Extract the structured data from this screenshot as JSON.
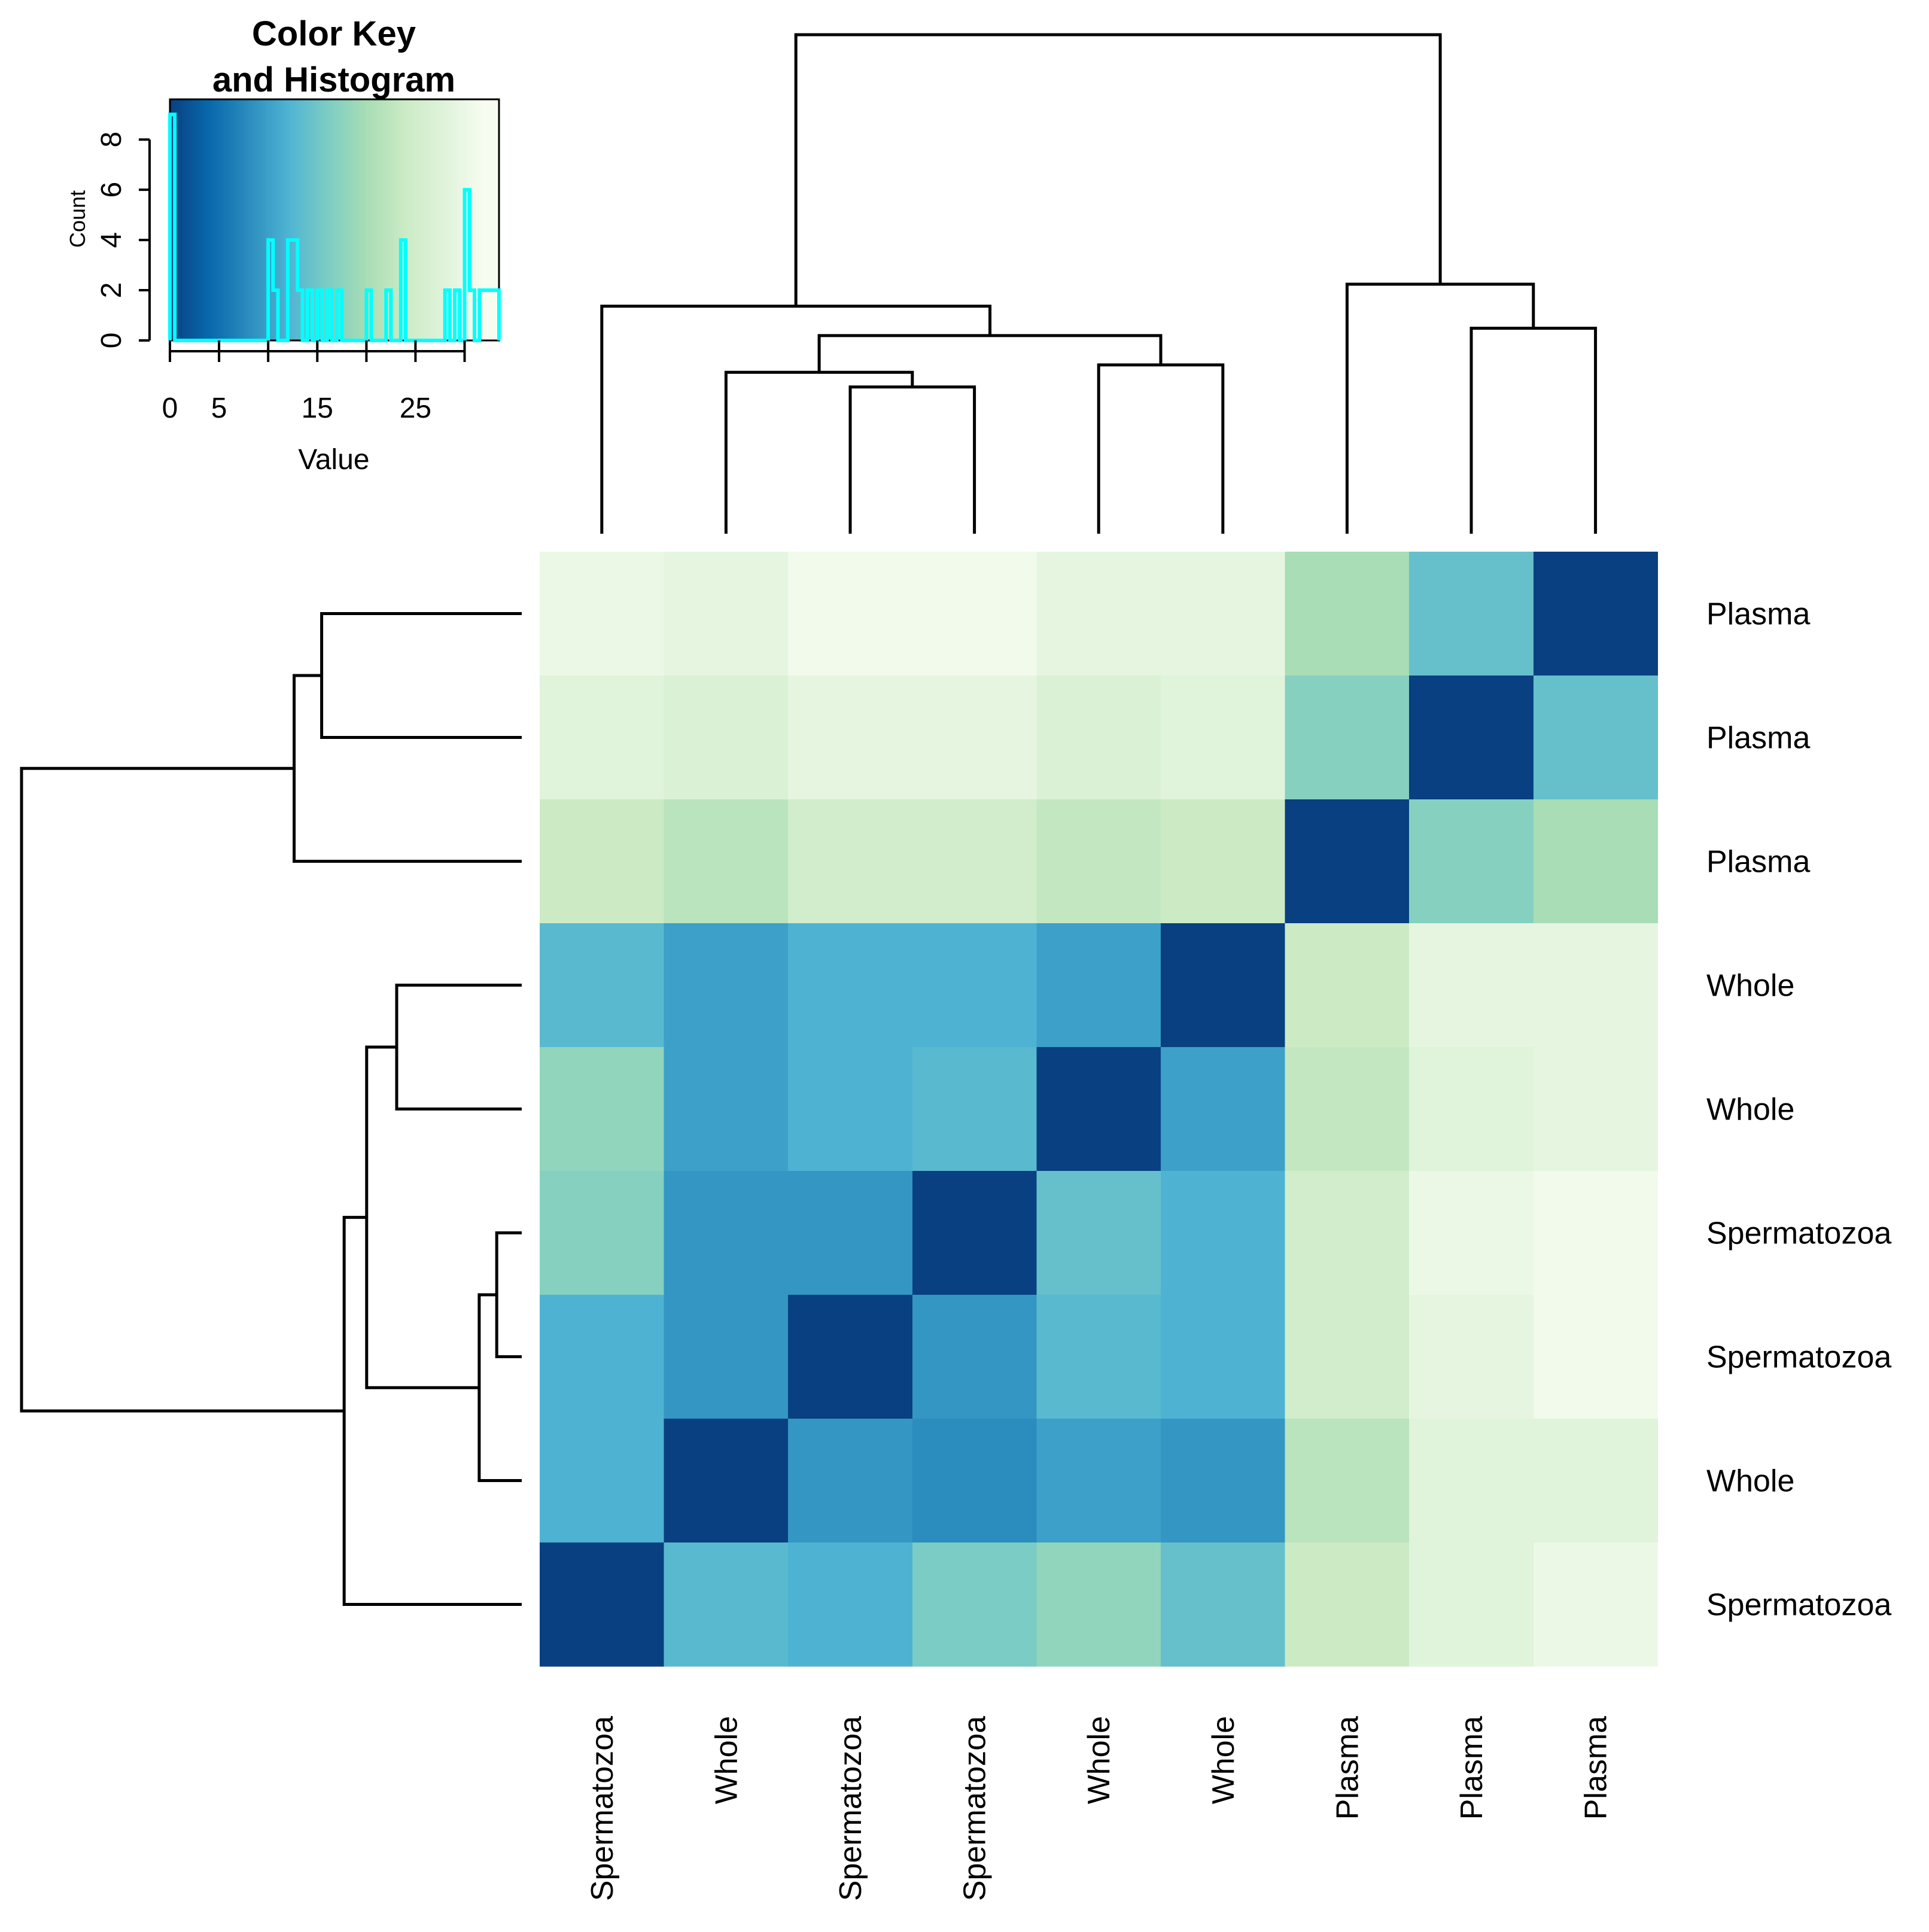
{
  "chart_data": {
    "type": "heatmap",
    "title": "",
    "row_labels": [
      "Plasma",
      "Plasma",
      "Plasma",
      "Whole",
      "Whole",
      "Spermatozoa",
      "Spermatozoa",
      "Whole",
      "Spermatozoa"
    ],
    "col_labels": [
      "Spermatozoa",
      "Whole",
      "Spermatozoa",
      "Spermatozoa",
      "Whole",
      "Whole",
      "Plasma",
      "Plasma",
      "Plasma"
    ],
    "values": [
      [
        30,
        29,
        31,
        31,
        29,
        29,
        20,
        14,
        0
      ],
      [
        28,
        27,
        29,
        29,
        27,
        28,
        17,
        0,
        14
      ],
      [
        24,
        22,
        25,
        25,
        23,
        24,
        0,
        17,
        20
      ],
      [
        13,
        10,
        12,
        12,
        10,
        0,
        24,
        29,
        29
      ],
      [
        18,
        10,
        12,
        13,
        0,
        10,
        23,
        28,
        29
      ],
      [
        17,
        9,
        9,
        0,
        14,
        12,
        25,
        30,
        31
      ],
      [
        12,
        9,
        0,
        9,
        13,
        12,
        25,
        29,
        31
      ],
      [
        12,
        0,
        9,
        8,
        10,
        9,
        22,
        28,
        28
      ],
      [
        0,
        13,
        12,
        16,
        18,
        14,
        24,
        28,
        30
      ]
    ],
    "color_scale": {
      "stops": [
        "#084081",
        "#0868ac",
        "#2b8cbe",
        "#4eb3d3",
        "#7bccc4",
        "#a8ddb5",
        "#ccebc5",
        "#e0f3db",
        "#f7fcf0"
      ],
      "min": 0,
      "max": 32
    },
    "color_key": {
      "title_line1": "Color Key",
      "title_line2": "and Histogram",
      "xlabel": "Value",
      "ylabel": "Count",
      "x_ticks": [
        0,
        5,
        15,
        25
      ],
      "x_tick_labels": [
        "0",
        "5",
        "15",
        "25"
      ],
      "y_ticks": [
        0,
        2,
        4,
        6,
        8
      ],
      "y_tick_labels": [
        "0",
        "2",
        "4",
        "6",
        "8"
      ],
      "xlim": [
        0,
        33.5
      ],
      "ylim": [
        0,
        9.6
      ],
      "histogram_color": "#00ffff",
      "histogram_bins": [
        0,
        0.5,
        10,
        10.5,
        11,
        12,
        12.5,
        13,
        13.5,
        14,
        14.5,
        15,
        15.5,
        16,
        16.5,
        17,
        17.5,
        18,
        20,
        20.5,
        22,
        22.5,
        23,
        23.5,
        24,
        24.5,
        28,
        28.5,
        29,
        29.5,
        30,
        30.5,
        31,
        31.5,
        32.5,
        33.5
      ],
      "histogram_counts": [
        9,
        0,
        4,
        2,
        0,
        4,
        4,
        2,
        0,
        2,
        0,
        2,
        0,
        2,
        0,
        2,
        0,
        0,
        2,
        0,
        2,
        0,
        0,
        4,
        0,
        0,
        2,
        0,
        2,
        0,
        6,
        2,
        0,
        2,
        2
      ]
    },
    "row_dendrogram": {
      "merges": [
        [
          5,
          6,
          1.0
        ],
        [
          7,
          9,
          1.7
        ],
        [
          3,
          4,
          5.0
        ],
        [
          10,
          11,
          6.2
        ],
        [
          8,
          12,
          7.1
        ],
        [
          0,
          1,
          8.0
        ],
        [
          2,
          14,
          9.1
        ],
        [
          13,
          15,
          20.0
        ]
      ],
      "max_height": 20.0
    },
    "col_dendrogram": {
      "merges": [
        [
          2,
          3,
          2.0
        ],
        [
          1,
          9,
          2.2
        ],
        [
          4,
          5,
          2.3
        ],
        [
          10,
          11,
          2.7
        ],
        [
          7,
          8,
          2.8
        ],
        [
          0,
          12,
          3.1
        ],
        [
          6,
          13,
          3.4
        ],
        [
          14,
          15,
          6.8
        ]
      ],
      "max_height": 6.8
    }
  }
}
